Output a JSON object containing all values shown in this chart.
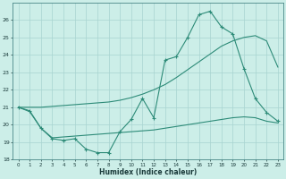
{
  "xlabel": "Humidex (Indice chaleur)",
  "x_values": [
    0,
    1,
    2,
    3,
    4,
    5,
    6,
    7,
    8,
    9,
    10,
    11,
    12,
    13,
    14,
    15,
    16,
    17,
    18,
    19,
    20,
    21,
    22,
    23
  ],
  "line_jagged": [
    21.0,
    20.8,
    19.8,
    19.2,
    19.1,
    19.2,
    18.6,
    18.4,
    18.4,
    19.6,
    20.3,
    21.5,
    20.4,
    23.7,
    23.9,
    25.0,
    26.3,
    26.5,
    25.6,
    25.2,
    23.2,
    21.5,
    20.7,
    20.2
  ],
  "line_upper": [
    21.0,
    21.0,
    21.0,
    21.05,
    21.1,
    21.15,
    21.2,
    21.25,
    21.3,
    21.4,
    21.55,
    21.75,
    22.0,
    22.3,
    22.7,
    23.15,
    23.6,
    24.05,
    24.5,
    24.8,
    25.0,
    25.1,
    24.8,
    23.3
  ],
  "line_lower": [
    21.0,
    20.75,
    19.8,
    19.25,
    19.3,
    19.35,
    19.4,
    19.45,
    19.5,
    19.55,
    19.6,
    19.65,
    19.7,
    19.8,
    19.9,
    20.0,
    20.1,
    20.2,
    20.3,
    20.4,
    20.45,
    20.4,
    20.2,
    20.1
  ],
  "color": "#2d8b78",
  "background": "#cceee8",
  "grid_color": "#a8d4d0",
  "ylim": [
    18,
    27
  ],
  "xlim": [
    -0.5,
    23.5
  ],
  "yticks": [
    18,
    19,
    20,
    21,
    22,
    23,
    24,
    25,
    26
  ],
  "xticks": [
    0,
    1,
    2,
    3,
    4,
    5,
    6,
    7,
    8,
    9,
    10,
    11,
    12,
    13,
    14,
    15,
    16,
    17,
    18,
    19,
    20,
    21,
    22,
    23
  ]
}
